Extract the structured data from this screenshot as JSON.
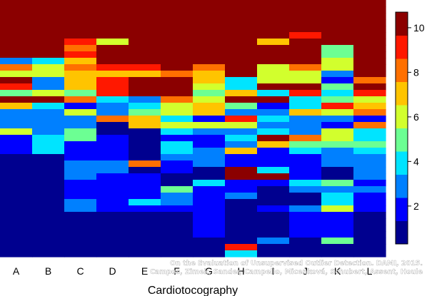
{
  "chart_data": {
    "type": "heatmap",
    "title": "",
    "xlabel": "Cardiotocography",
    "ylabel": "",
    "x_categories": [
      "A",
      "B",
      "C",
      "D",
      "E",
      "F",
      "G",
      "H",
      "I",
      "J",
      "K",
      "L"
    ],
    "row_count": 40,
    "row_order": "top-to-bottom",
    "colorbar": {
      "min": 0.3,
      "max": 10.7,
      "ticks": [
        2,
        4,
        6,
        8,
        10
      ]
    },
    "colormap": [
      "#00008f",
      "#0000ff",
      "#0080ff",
      "#00e4ff",
      "#6cff93",
      "#d2ff2d",
      "#ffc400",
      "#ff7000",
      "#ff1800",
      "#8b0000"
    ],
    "columns": [
      [
        10,
        10,
        10,
        10,
        10,
        10,
        10,
        10,
        10,
        3,
        8,
        6,
        10,
        9,
        5,
        10,
        7,
        3,
        3,
        3,
        6,
        2,
        2,
        2,
        1,
        1,
        1,
        1,
        1,
        1,
        1,
        1,
        1,
        1,
        1,
        1,
        1,
        1,
        1,
        1
      ],
      [
        10,
        10,
        10,
        10,
        10,
        10,
        10,
        10,
        10,
        4,
        6,
        6,
        3,
        3,
        6,
        10,
        4,
        3,
        3,
        3,
        3,
        4,
        4,
        4,
        1,
        1,
        1,
        1,
        1,
        1,
        1,
        1,
        1,
        1,
        1,
        1,
        1,
        1,
        1,
        1
      ],
      [
        10,
        10,
        10,
        10,
        10,
        10,
        9,
        8,
        9,
        7,
        8,
        7,
        7,
        7,
        5,
        8,
        2,
        6,
        3,
        3,
        5,
        5,
        2,
        2,
        2,
        3,
        3,
        3,
        2,
        2,
        2,
        3,
        3,
        1,
        1,
        1,
        1,
        1,
        1,
        1
      ],
      [
        10,
        10,
        10,
        10,
        10,
        10,
        6,
        10,
        10,
        10,
        9,
        7,
        9,
        9,
        9,
        4,
        3,
        3,
        8,
        1,
        1,
        2,
        2,
        2,
        2,
        3,
        3,
        2,
        2,
        2,
        2,
        2,
        2,
        1,
        1,
        1,
        1,
        1,
        1,
        1
      ],
      [
        10,
        10,
        10,
        10,
        10,
        10,
        10,
        10,
        10,
        10,
        9,
        7,
        10,
        10,
        10,
        3,
        4,
        5,
        7,
        7,
        1,
        1,
        1,
        1,
        1,
        8,
        1,
        2,
        2,
        2,
        2,
        4,
        2,
        1,
        1,
        1,
        1,
        1,
        1,
        1
      ],
      [
        10,
        10,
        10,
        10,
        10,
        10,
        10,
        10,
        10,
        10,
        10,
        8,
        10,
        10,
        10,
        8,
        6,
        6,
        4,
        6,
        4,
        2,
        4,
        4,
        3,
        2,
        2,
        1,
        1,
        5,
        3,
        3,
        2,
        1,
        1,
        1,
        1,
        1,
        1,
        1
      ],
      [
        10,
        10,
        10,
        10,
        10,
        10,
        10,
        10,
        10,
        10,
        8,
        7,
        7,
        6,
        5,
        6,
        7,
        7,
        2,
        6,
        3,
        2,
        2,
        3,
        3,
        3,
        1,
        1,
        4,
        2,
        2,
        2,
        2,
        2,
        2,
        2,
        2,
        1,
        1,
        1
      ],
      [
        10,
        10,
        10,
        10,
        10,
        10,
        10,
        10,
        10,
        10,
        10,
        10,
        4,
        4,
        7,
        10,
        5,
        3,
        9,
        6,
        3,
        4,
        3,
        7,
        2,
        2,
        10,
        10,
        2,
        2,
        3,
        1,
        1,
        1,
        1,
        1,
        1,
        1,
        9,
        4
      ],
      [
        10,
        10,
        10,
        10,
        10,
        10,
        7,
        10,
        10,
        10,
        6,
        6,
        6,
        10,
        4,
        10,
        2,
        3,
        4,
        3,
        4,
        10,
        7,
        2,
        2,
        2,
        4,
        10,
        2,
        1,
        1,
        1,
        2,
        1,
        1,
        1,
        1,
        3,
        1,
        1
      ],
      [
        10,
        10,
        10,
        10,
        10,
        9,
        10,
        10,
        10,
        10,
        8,
        6,
        6,
        10,
        9,
        4,
        4,
        7,
        3,
        3,
        3,
        8,
        5,
        4,
        2,
        2,
        2,
        2,
        4,
        3,
        1,
        1,
        3,
        2,
        2,
        2,
        2,
        1,
        1,
        1
      ],
      [
        10,
        10,
        10,
        10,
        10,
        10,
        10,
        5,
        5,
        6,
        6,
        3,
        2,
        5,
        4,
        5,
        9,
        6,
        3,
        2,
        6,
        6,
        5,
        3,
        3,
        3,
        1,
        1,
        5,
        3,
        4,
        4,
        6,
        2,
        2,
        2,
        2,
        5,
        1,
        1
      ],
      [
        10,
        10,
        10,
        10,
        10,
        10,
        10,
        10,
        10,
        10,
        10,
        10,
        8,
        10,
        9,
        6,
        7,
        8,
        2,
        8,
        4,
        4,
        5,
        4,
        3,
        3,
        3,
        3,
        2,
        3,
        2,
        2,
        2,
        1,
        1,
        1,
        1,
        1,
        1,
        1
      ]
    ]
  },
  "watermark": {
    "line1": "On the Evaluation of Unsupervised Outlier Detection. DAMI, 2015.",
    "line2": "Campos, Zimek, Sander, Campello, Micenková, Schubert, Assent, Houle"
  }
}
